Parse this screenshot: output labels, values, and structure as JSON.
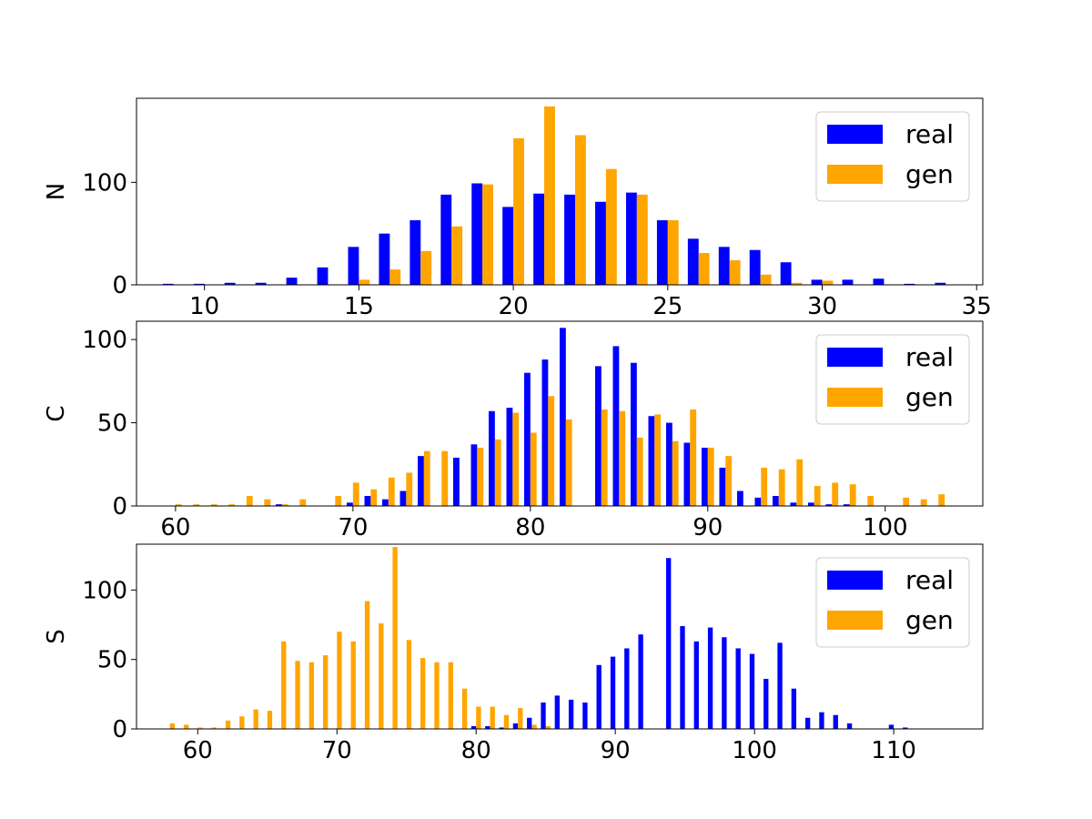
{
  "colors": {
    "real": "#0000ff",
    "gen": "#ffa500"
  },
  "chart_data": [
    {
      "type": "bar",
      "ylabel": "N",
      "xlim": [
        7.8,
        35.2
      ],
      "ylim": [
        0,
        182
      ],
      "xticks": [
        10,
        15,
        20,
        25,
        30,
        35
      ],
      "yticks": [
        0,
        100
      ],
      "legend": {
        "placement": "top-right"
      },
      "x": [
        9,
        10,
        11,
        12,
        13,
        14,
        15,
        16,
        17,
        18,
        19,
        20,
        21,
        22,
        23,
        24,
        25,
        26,
        27,
        28,
        29,
        30,
        31,
        32,
        33,
        34
      ],
      "series": [
        {
          "name": "real",
          "values": [
            1,
            1,
            2,
            2,
            7,
            17,
            37,
            50,
            63,
            88,
            99,
            76,
            89,
            88,
            81,
            90,
            63,
            45,
            37,
            34,
            22,
            5,
            5,
            6,
            1,
            2
          ]
        },
        {
          "name": "gen",
          "values": [
            0,
            0,
            0,
            0,
            0,
            0,
            5,
            15,
            33,
            57,
            98,
            143,
            174,
            146,
            113,
            88,
            63,
            31,
            24,
            10,
            2,
            4,
            0,
            0,
            0,
            0
          ]
        }
      ]
    },
    {
      "type": "bar",
      "ylabel": "C",
      "xlim": [
        57.8,
        105.5
      ],
      "ylim": [
        0,
        111
      ],
      "xticks": [
        60,
        70,
        80,
        90,
        100
      ],
      "yticks": [
        0,
        50,
        100
      ],
      "legend": {
        "placement": "top-right"
      },
      "x": [
        60,
        61,
        62,
        63,
        64,
        65,
        66,
        67,
        68,
        69,
        70,
        71,
        72,
        73,
        74,
        75,
        76,
        77,
        78,
        79,
        80,
        81,
        82,
        83,
        84,
        85,
        86,
        87,
        88,
        89,
        90,
        91,
        92,
        93,
        94,
        95,
        96,
        97,
        98,
        99,
        100,
        101,
        102,
        103
      ],
      "series": [
        {
          "name": "real",
          "values": [
            0,
            0,
            0,
            0,
            0,
            0,
            1,
            0,
            0,
            0,
            2,
            6,
            4,
            9,
            30,
            0,
            29,
            37,
            57,
            59,
            80,
            88,
            107,
            0,
            84,
            96,
            86,
            54,
            50,
            38,
            35,
            23,
            9,
            5,
            6,
            2,
            2,
            1,
            1,
            0,
            0,
            0,
            0,
            0
          ]
        },
        {
          "name": "gen",
          "values": [
            1,
            1,
            1,
            1,
            6,
            4,
            1,
            4,
            0,
            6,
            14,
            10,
            17,
            20,
            33,
            33,
            0,
            35,
            40,
            56,
            44,
            66,
            52,
            0,
            58,
            57,
            41,
            55,
            39,
            58,
            35,
            30,
            0,
            23,
            22,
            28,
            12,
            14,
            13,
            6,
            0,
            5,
            4,
            7
          ]
        }
      ]
    },
    {
      "type": "bar",
      "ylabel": "S",
      "xlim": [
        55.6,
        116.4
      ],
      "ylim": [
        0,
        133
      ],
      "xticks": [
        60,
        70,
        80,
        90,
        100,
        110
      ],
      "yticks": [
        0,
        50,
        100
      ],
      "legend": {
        "placement": "top-right"
      },
      "x": [
        58,
        59,
        60,
        61,
        62,
        63,
        64,
        65,
        66,
        67,
        68,
        69,
        70,
        71,
        72,
        73,
        74,
        75,
        76,
        77,
        78,
        79,
        80,
        81,
        82,
        83,
        84,
        85,
        86,
        87,
        88,
        89,
        90,
        91,
        92,
        93,
        94,
        95,
        96,
        97,
        98,
        99,
        100,
        101,
        102,
        103,
        104,
        105,
        106,
        107,
        108,
        109,
        110,
        111,
        112
      ],
      "series": [
        {
          "name": "real",
          "values": [
            0,
            0,
            0,
            0,
            0,
            0,
            0,
            0,
            0,
            0,
            0,
            0,
            0,
            0,
            0,
            0,
            0,
            0,
            0,
            0,
            0,
            0,
            2,
            2,
            1,
            4,
            8,
            19,
            24,
            21,
            19,
            46,
            52,
            58,
            68,
            0,
            123,
            74,
            63,
            73,
            66,
            58,
            54,
            36,
            62,
            29,
            8,
            12,
            10,
            4,
            0,
            0,
            3,
            1,
            0
          ]
        },
        {
          "name": "gen",
          "values": [
            4,
            3,
            1,
            1,
            6,
            9,
            14,
            13,
            63,
            49,
            48,
            53,
            70,
            63,
            92,
            76,
            131,
            64,
            51,
            48,
            48,
            29,
            16,
            16,
            10,
            15,
            3,
            2,
            0,
            0,
            0,
            0,
            0,
            0,
            0,
            0,
            0,
            0,
            0,
            0,
            0,
            0,
            0,
            0,
            0,
            0,
            0,
            0,
            0,
            0,
            0,
            0,
            0,
            0,
            0
          ]
        }
      ]
    }
  ]
}
